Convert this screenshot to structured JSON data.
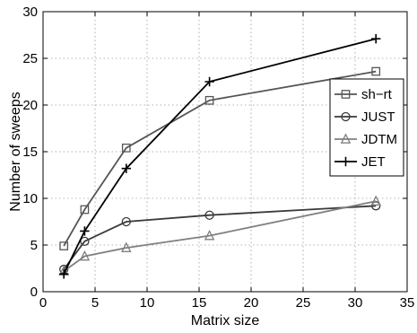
{
  "chart_data": {
    "type": "line",
    "title": "",
    "xlabel": "Matrix size",
    "ylabel": "Number of sweeps",
    "xlim": [
      0,
      35
    ],
    "ylim": [
      0,
      30
    ],
    "xticks": [
      0,
      5,
      10,
      15,
      20,
      25,
      30,
      35
    ],
    "yticks": [
      0,
      5,
      10,
      15,
      20,
      25,
      30
    ],
    "grid": true,
    "legend_position": "right",
    "x": [
      2,
      4,
      8,
      16,
      32
    ],
    "series": [
      {
        "name": "sh−rt",
        "values": [
          4.9,
          8.8,
          15.4,
          20.5,
          23.6
        ],
        "color": "#555555",
        "marker": "square"
      },
      {
        "name": "JUST",
        "values": [
          2.4,
          5.4,
          7.5,
          8.2,
          9.2
        ],
        "color": "#3a3a3a",
        "marker": "circle"
      },
      {
        "name": "JDTM",
        "values": [
          2.2,
          3.8,
          4.7,
          6.0,
          9.7
        ],
        "color": "#808080",
        "marker": "triangle"
      },
      {
        "name": "JET",
        "values": [
          1.9,
          6.5,
          13.2,
          22.5,
          27.1
        ],
        "color": "#000000",
        "marker": "plus"
      }
    ]
  }
}
